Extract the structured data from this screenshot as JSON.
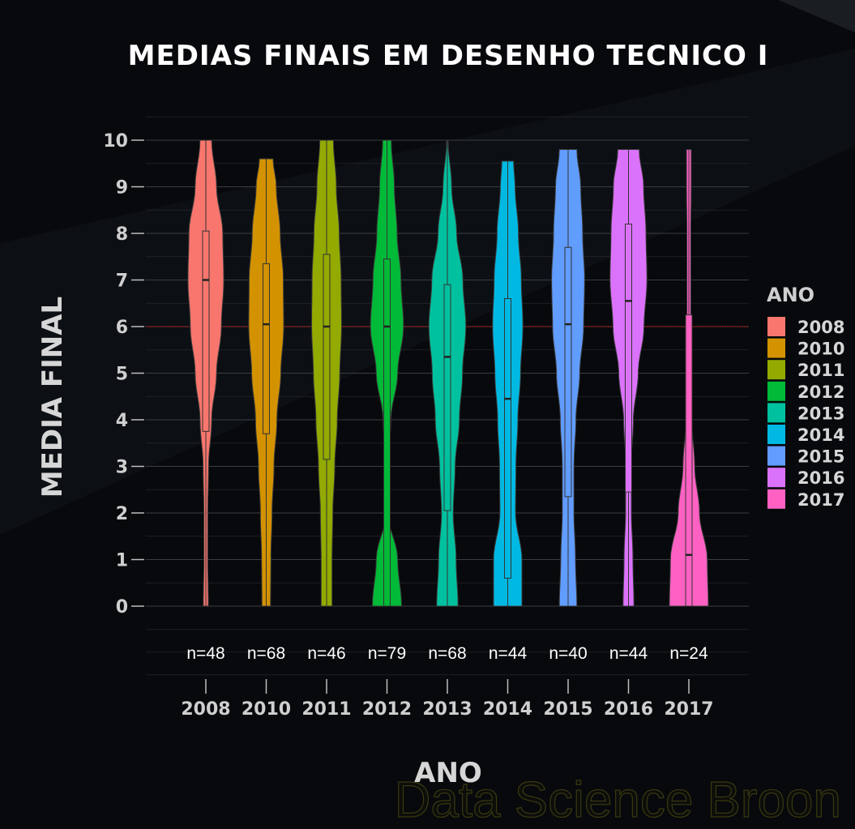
{
  "chart_data": {
    "type": "violin",
    "title": "MEDIAS FINAIS EM DESENHO TECNICO I",
    "xlabel": "ANO",
    "ylabel": "MEDIA FINAL",
    "ylim": [
      -0.5,
      10.5
    ],
    "yticks": [
      0,
      1,
      2,
      3,
      4,
      5,
      6,
      7,
      8,
      9,
      10
    ],
    "reference_line": 6,
    "legend_title": "ANO",
    "legend_position": "right",
    "watermark": "Data Science Broon",
    "series": [
      {
        "name": "2008",
        "color": "#F8766D",
        "n_label": "n=48",
        "min": 0,
        "max": 10,
        "q1": 3.75,
        "median": 7.0,
        "q3": 8.05,
        "density": [
          [
            0,
            0.13
          ],
          [
            1,
            0.1
          ],
          [
            2,
            0.1
          ],
          [
            3,
            0.14
          ],
          [
            4,
            0.3
          ],
          [
            5,
            0.55
          ],
          [
            6,
            0.8
          ],
          [
            7,
            0.92
          ],
          [
            8,
            0.87
          ],
          [
            9,
            0.55
          ],
          [
            10,
            0.3
          ]
        ]
      },
      {
        "name": "2010",
        "color": "#D39200",
        "n_label": "n=68",
        "min": 0,
        "max": 9.6,
        "q1": 3.7,
        "median": 6.05,
        "q3": 7.35,
        "density": [
          [
            0,
            0.22
          ],
          [
            1,
            0.24
          ],
          [
            2,
            0.3
          ],
          [
            3,
            0.4
          ],
          [
            4,
            0.55
          ],
          [
            5,
            0.75
          ],
          [
            6,
            0.9
          ],
          [
            7,
            0.88
          ],
          [
            8,
            0.72
          ],
          [
            9,
            0.52
          ],
          [
            9.6,
            0.35
          ]
        ]
      },
      {
        "name": "2011",
        "color": "#93AA00",
        "n_label": "n=46",
        "min": 0,
        "max": 10,
        "q1": 3.15,
        "median": 6.0,
        "q3": 7.55,
        "density": [
          [
            0,
            0.28
          ],
          [
            1,
            0.28
          ],
          [
            2,
            0.32
          ],
          [
            3,
            0.42
          ],
          [
            4,
            0.55
          ],
          [
            5,
            0.68
          ],
          [
            6,
            0.77
          ],
          [
            7,
            0.75
          ],
          [
            8,
            0.65
          ],
          [
            9,
            0.5
          ],
          [
            10,
            0.35
          ]
        ]
      },
      {
        "name": "2012",
        "color": "#00BA38",
        "n_label": "n=79",
        "min": 0,
        "max": 10,
        "q1": 0,
        "median": 6.0,
        "q3": 7.45,
        "density": [
          [
            0,
            0.75
          ],
          [
            1,
            0.55
          ],
          [
            2,
            0.05
          ],
          [
            3,
            0.04
          ],
          [
            4,
            0.2
          ],
          [
            5,
            0.55
          ],
          [
            6,
            0.85
          ],
          [
            7,
            0.72
          ],
          [
            8,
            0.52
          ],
          [
            9,
            0.38
          ],
          [
            10,
            0.22
          ]
        ]
      },
      {
        "name": "2013",
        "color": "#00C19F",
        "n_label": "n=68",
        "min": 0,
        "max": 10,
        "q1": 2.05,
        "median": 5.35,
        "q3": 6.9,
        "density": [
          [
            0,
            0.55
          ],
          [
            1,
            0.45
          ],
          [
            2,
            0.3
          ],
          [
            3,
            0.4
          ],
          [
            4,
            0.62
          ],
          [
            5,
            0.78
          ],
          [
            6,
            0.95
          ],
          [
            7,
            0.8
          ],
          [
            8,
            0.48
          ],
          [
            9,
            0.22
          ],
          [
            10,
            0.04
          ]
        ]
      },
      {
        "name": "2014",
        "color": "#00B9E3",
        "n_label": "n=44",
        "min": 0,
        "max": 9.55,
        "q1": 0.6,
        "median": 4.45,
        "q3": 6.6,
        "density": [
          [
            0,
            0.73
          ],
          [
            1,
            0.73
          ],
          [
            2,
            0.4
          ],
          [
            3,
            0.42
          ],
          [
            4,
            0.52
          ],
          [
            5,
            0.66
          ],
          [
            6,
            0.78
          ],
          [
            7,
            0.7
          ],
          [
            8,
            0.55
          ],
          [
            9,
            0.38
          ],
          [
            9.55,
            0.3
          ]
        ]
      },
      {
        "name": "2015",
        "color": "#619CFF",
        "n_label": "n=40",
        "min": 0,
        "max": 9.8,
        "q1": 2.35,
        "median": 6.05,
        "q3": 7.7,
        "density": [
          [
            0,
            0.45
          ],
          [
            1,
            0.38
          ],
          [
            2,
            0.3
          ],
          [
            3,
            0.3
          ],
          [
            4,
            0.4
          ],
          [
            5,
            0.6
          ],
          [
            6,
            0.8
          ],
          [
            7,
            0.85
          ],
          [
            8,
            0.75
          ],
          [
            9,
            0.65
          ],
          [
            9.8,
            0.45
          ]
        ]
      },
      {
        "name": "2016",
        "color": "#DB72FB",
        "n_label": "n=44",
        "min": 0,
        "max": 9.8,
        "q1": 2.45,
        "median": 6.55,
        "q3": 8.2,
        "density": [
          [
            0,
            0.28
          ],
          [
            1,
            0.23
          ],
          [
            2,
            0.15
          ],
          [
            3,
            0.14
          ],
          [
            4,
            0.25
          ],
          [
            5,
            0.5
          ],
          [
            6,
            0.8
          ],
          [
            7,
            0.95
          ],
          [
            8,
            0.9
          ],
          [
            9,
            0.78
          ],
          [
            9.8,
            0.55
          ]
        ]
      },
      {
        "name": "2017",
        "color": "#FF61C3",
        "n_label": "n=24",
        "min": 0,
        "max": 9.8,
        "q1": 0,
        "median": 1.1,
        "q3": 6.25,
        "density": [
          [
            0,
            1.0
          ],
          [
            1,
            0.95
          ],
          [
            2,
            0.55
          ],
          [
            3,
            0.3
          ],
          [
            4,
            0.15
          ],
          [
            5,
            0.1
          ],
          [
            6,
            0.1
          ],
          [
            7,
            0.1
          ],
          [
            8,
            0.1
          ],
          [
            9,
            0.12
          ],
          [
            9.8,
            0.12
          ]
        ]
      }
    ]
  }
}
